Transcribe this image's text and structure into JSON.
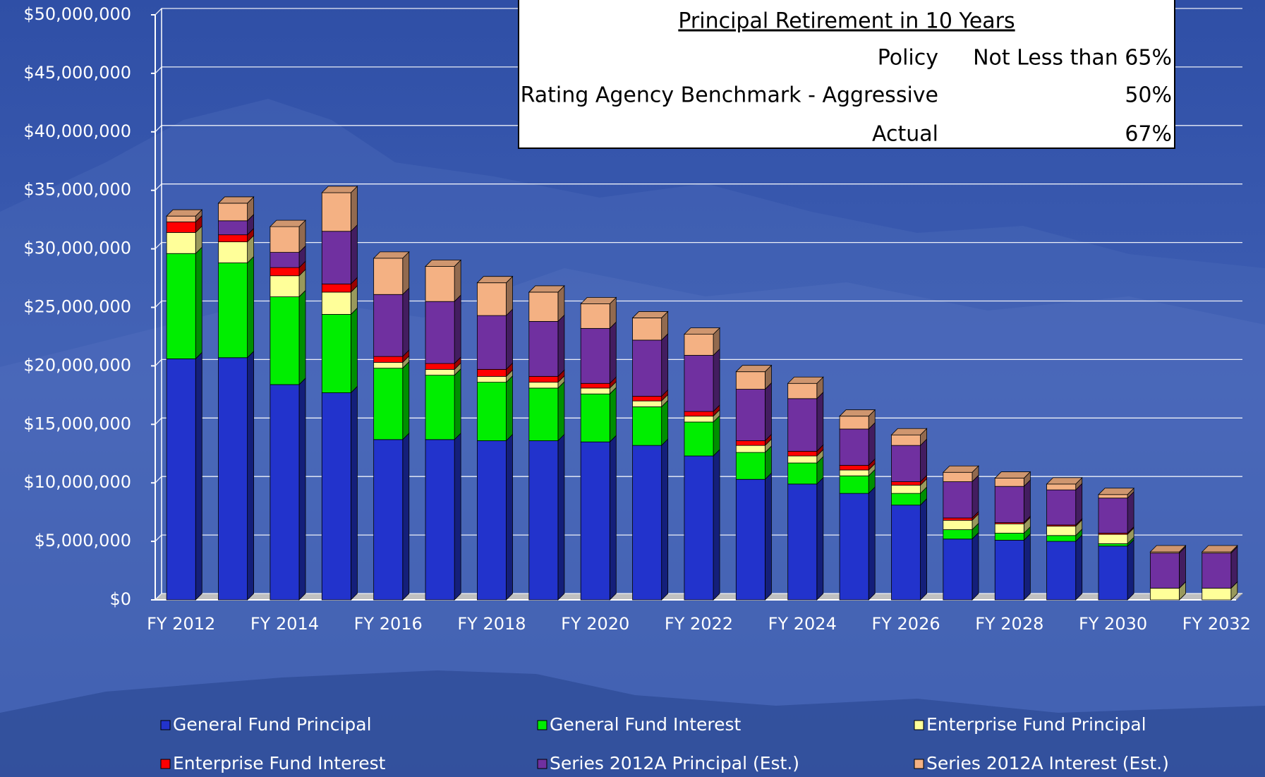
{
  "chart_data": {
    "type": "stacked_bar_3d",
    "categories": [
      "FY 2012",
      null,
      "FY 2014",
      null,
      "FY 2016",
      null,
      "FY 2018",
      null,
      "FY 2020",
      null,
      "FY 2022",
      null,
      "FY 2024",
      null,
      "FY 2026",
      null,
      "FY 2028",
      null,
      "FY 2030",
      null,
      "FY 2032"
    ],
    "series": [
      {
        "name": "General Fund Principal",
        "color": "#2233cc",
        "values": [
          20600000,
          20700000,
          18400000,
          17700000,
          13700000,
          13700000,
          13600000,
          13600000,
          13500000,
          13200000,
          12300000,
          10300000,
          9900000,
          9100000,
          8100000,
          5200000,
          5100000,
          5000000,
          4600000,
          0,
          0
        ]
      },
      {
        "name": "General Fund Interest",
        "color": "#00ee00",
        "values": [
          9000000,
          8100000,
          7500000,
          6700000,
          6100000,
          5500000,
          5000000,
          4500000,
          4100000,
          3300000,
          2900000,
          2300000,
          1800000,
          1500000,
          1000000,
          800000,
          600000,
          500000,
          200000,
          0,
          0
        ]
      },
      {
        "name": "Enterprise Fund Principal",
        "color": "#ffff99",
        "values": [
          1800000,
          1800000,
          1800000,
          1900000,
          500000,
          500000,
          500000,
          500000,
          500000,
          500000,
          500000,
          600000,
          600000,
          500000,
          700000,
          800000,
          800000,
          800000,
          800000,
          1000000,
          1000000
        ]
      },
      {
        "name": "Enterprise Fund Interest",
        "color": "#ff0000",
        "values": [
          900000,
          600000,
          700000,
          700000,
          500000,
          500000,
          600000,
          500000,
          400000,
          400000,
          400000,
          400000,
          400000,
          400000,
          300000,
          200000,
          100000,
          100000,
          100000,
          0,
          0
        ]
      },
      {
        "name": "Series 2012A Principal (Est.)",
        "color": "#7030a0",
        "values": [
          0,
          1200000,
          1300000,
          4500000,
          5300000,
          5300000,
          4600000,
          4700000,
          4700000,
          4800000,
          4800000,
          4400000,
          4500000,
          3100000,
          3100000,
          3100000,
          3100000,
          3000000,
          3000000,
          3000000,
          3000000
        ]
      },
      {
        "name": "Series 2012A Interest (Est.)",
        "color": "#f4b183",
        "values": [
          500000,
          1500000,
          2200000,
          3300000,
          3100000,
          3000000,
          2800000,
          2500000,
          2100000,
          1900000,
          1800000,
          1500000,
          1300000,
          1100000,
          900000,
          800000,
          700000,
          500000,
          300000,
          100000,
          100000
        ]
      }
    ],
    "ylim": [
      0,
      50000000
    ],
    "yticks": [
      {
        "value": 0,
        "label": "$0"
      },
      {
        "value": 5000000,
        "label": "$5,000,000"
      },
      {
        "value": 10000000,
        "label": "$10,000,000"
      },
      {
        "value": 15000000,
        "label": "$15,000,000"
      },
      {
        "value": 20000000,
        "label": "$20,000,000"
      },
      {
        "value": 25000000,
        "label": "$25,000,000"
      },
      {
        "value": 30000000,
        "label": "$30,000,000"
      },
      {
        "value": 35000000,
        "label": "$35,000,000"
      },
      {
        "value": 40000000,
        "label": "$40,000,000"
      },
      {
        "value": 45000000,
        "label": "$45,000,000"
      },
      {
        "value": 50000000,
        "label": "$50,000,000"
      }
    ],
    "grid": true,
    "legend": "bottom",
    "table": {
      "title": "Principal Retirement in 10 Years",
      "rows": [
        [
          "Policy",
          "Not Less than 65%"
        ],
        [
          "Rating Agency Benchmark - Aggressive",
          "50%"
        ],
        [
          "Actual",
          "67%"
        ]
      ]
    }
  }
}
